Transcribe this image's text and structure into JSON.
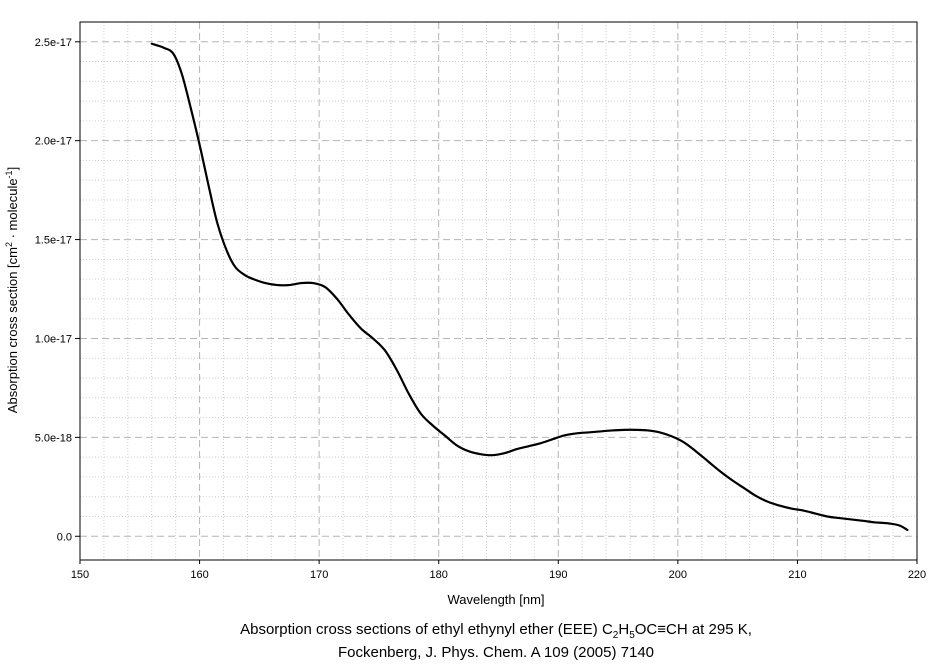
{
  "chart_data": {
    "type": "line",
    "title": "",
    "xlabel": "Wavelength [nm]",
    "ylabel": "Absorption cross section [cm²· molecule⁻¹]",
    "ylabel_parts": {
      "prefix": "Absorption cross section [cm",
      "sup1": "2",
      "middle": " · molecule",
      "sup2": "-1",
      "suffix": "]"
    },
    "xlim": [
      150,
      220
    ],
    "ylim": [
      -1.2e-18,
      2.6e-17
    ],
    "x_ticks": [
      150,
      160,
      170,
      180,
      190,
      200,
      210,
      220
    ],
    "x_tick_labels": [
      "150",
      "160",
      "170",
      "180",
      "190",
      "200",
      "210",
      "220"
    ],
    "y_ticks": [
      0,
      5e-18,
      1e-17,
      1.5e-17,
      2e-17,
      2.5e-17
    ],
    "y_tick_labels": [
      "0.0",
      "5.0e-18",
      "1.0e-17",
      "1.5e-17",
      "2.0e-17",
      "2.5e-17"
    ],
    "grid": true,
    "grid_minor": true,
    "line_color": "#000000",
    "series": [
      {
        "x": [
          156.0,
          157.0,
          157.8,
          158.5,
          159.2,
          160.0,
          160.8,
          161.5,
          162.3,
          163.0,
          163.8,
          164.5,
          165.5,
          166.5,
          167.5,
          168.5,
          169.5,
          170.5,
          171.5,
          172.5,
          173.5,
          174.5,
          175.5,
          176.5,
          177.5,
          178.5,
          179.5,
          180.5,
          181.5,
          182.5,
          183.5,
          184.5,
          185.5,
          186.5,
          187.5,
          188.5,
          189.5,
          190.5,
          191.5,
          192.5,
          193.5,
          194.5,
          195.5,
          196.5,
          197.5,
          198.5,
          199.5,
          200.5,
          201.5,
          202.5,
          203.5,
          204.5,
          205.5,
          206.5,
          207.5,
          208.5,
          209.5,
          210.5,
          211.5,
          212.5,
          213.5,
          214.5,
          215.5,
          216.5,
          217.5,
          218.5,
          219.2
        ],
        "y": [
          2.49e-17,
          2.47e-17,
          2.44e-17,
          2.34e-17,
          2.18e-17,
          1.98e-17,
          1.76e-17,
          1.58e-17,
          1.44e-17,
          1.36e-17,
          1.32e-17,
          1.3e-17,
          1.28e-17,
          1.27e-17,
          1.27e-17,
          1.28e-17,
          1.28e-17,
          1.26e-17,
          1.2e-17,
          1.12e-17,
          1.05e-17,
          1e-17,
          9.4e-18,
          8.4e-18,
          7.2e-18,
          6.2e-18,
          5.6e-18,
          5.1e-18,
          4.6e-18,
          4.3e-18,
          4.15e-18,
          4.1e-18,
          4.2e-18,
          4.4e-18,
          4.55e-18,
          4.7e-18,
          4.9e-18,
          5.1e-18,
          5.2e-18,
          5.25e-18,
          5.3e-18,
          5.35e-18,
          5.38e-18,
          5.38e-18,
          5.35e-18,
          5.25e-18,
          5.05e-18,
          4.75e-18,
          4.3e-18,
          3.8e-18,
          3.3e-18,
          2.85e-18,
          2.45e-18,
          2.05e-18,
          1.75e-18,
          1.55e-18,
          1.4e-18,
          1.3e-18,
          1.15e-18,
          1e-18,
          9.2e-19,
          8.5e-19,
          7.8e-19,
          7e-19,
          6.6e-19,
          5.5e-19,
          3.2e-19
        ]
      }
    ],
    "caption_line1_parts": {
      "a": "Absorption cross sections of  ethyl ethynyl ether (EEE) C",
      "s1": "2",
      "b": "H",
      "s2": "5",
      "c": "OC≡CH at 295 K,"
    },
    "caption_line2": "Fockenberg, J. Phys. Chem. A 109 (2005) 7140"
  }
}
